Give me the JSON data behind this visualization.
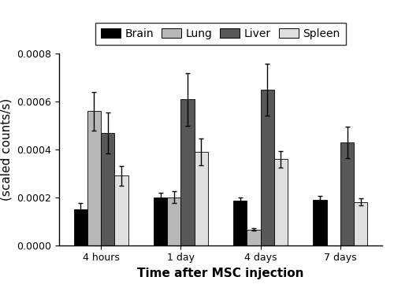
{
  "categories": [
    "4 hours",
    "1 day",
    "4 days",
    "7 days"
  ],
  "series": {
    "Brain": [
      0.00015,
      0.0002,
      0.000185,
      0.00019
    ],
    "Lung": [
      0.00056,
      0.0002,
      6.5e-05,
      0.0
    ],
    "Liver": [
      0.00047,
      0.00061,
      0.00065,
      0.00043
    ],
    "Spleen": [
      0.00029,
      0.00039,
      0.00036,
      0.00018
    ]
  },
  "errors": {
    "Brain": [
      2.5e-05,
      2e-05,
      1.5e-05,
      1.5e-05
    ],
    "Lung": [
      8e-05,
      2.5e-05,
      5e-06,
      0.0
    ],
    "Liver": [
      8.5e-05,
      0.00011,
      0.00011,
      6.5e-05
    ],
    "Spleen": [
      4e-05,
      5.5e-05,
      3.5e-05,
      1.5e-05
    ]
  },
  "colors": {
    "Brain": "#000000",
    "Lung": "#b8b8b8",
    "Liver": "#585858",
    "Spleen": "#e0e0e0"
  },
  "legend_labels": [
    "Brain",
    "Lung",
    "Liver",
    "Spleen"
  ],
  "xlabel": "Time after MSC injection",
  "ylim": [
    0,
    0.0008
  ],
  "yticks": [
    0.0,
    0.0002,
    0.0004,
    0.0006,
    0.0008
  ],
  "bar_width": 0.17,
  "axis_fontsize": 11,
  "tick_fontsize": 9,
  "legend_fontsize": 10
}
